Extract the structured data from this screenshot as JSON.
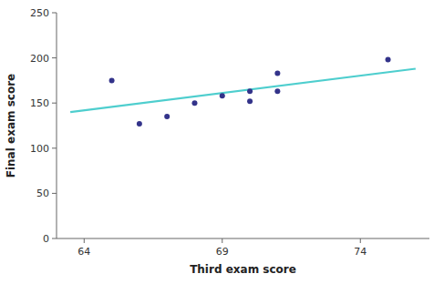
{
  "chart_data": {
    "type": "scatter",
    "xlabel": "Third exam score",
    "ylabel": "Final exam score",
    "series": [
      {
        "type": "scatter",
        "color": "#33338a",
        "x": [
          65,
          66,
          67,
          68,
          69,
          70,
          70,
          71,
          71,
          75
        ],
        "values": [
          175,
          127,
          135,
          150,
          158,
          152,
          163,
          163,
          183,
          198
        ]
      },
      {
        "type": "line",
        "color": "#4ecece",
        "x": [
          63.5,
          76
        ],
        "values": [
          140,
          188
        ]
      }
    ],
    "xlim": [
      63,
      76.5
    ],
    "ylim": [
      0,
      250
    ],
    "xticks": [
      64,
      69,
      74
    ],
    "yticks": [
      0,
      50,
      100,
      150,
      200,
      250
    ],
    "grid": false
  }
}
